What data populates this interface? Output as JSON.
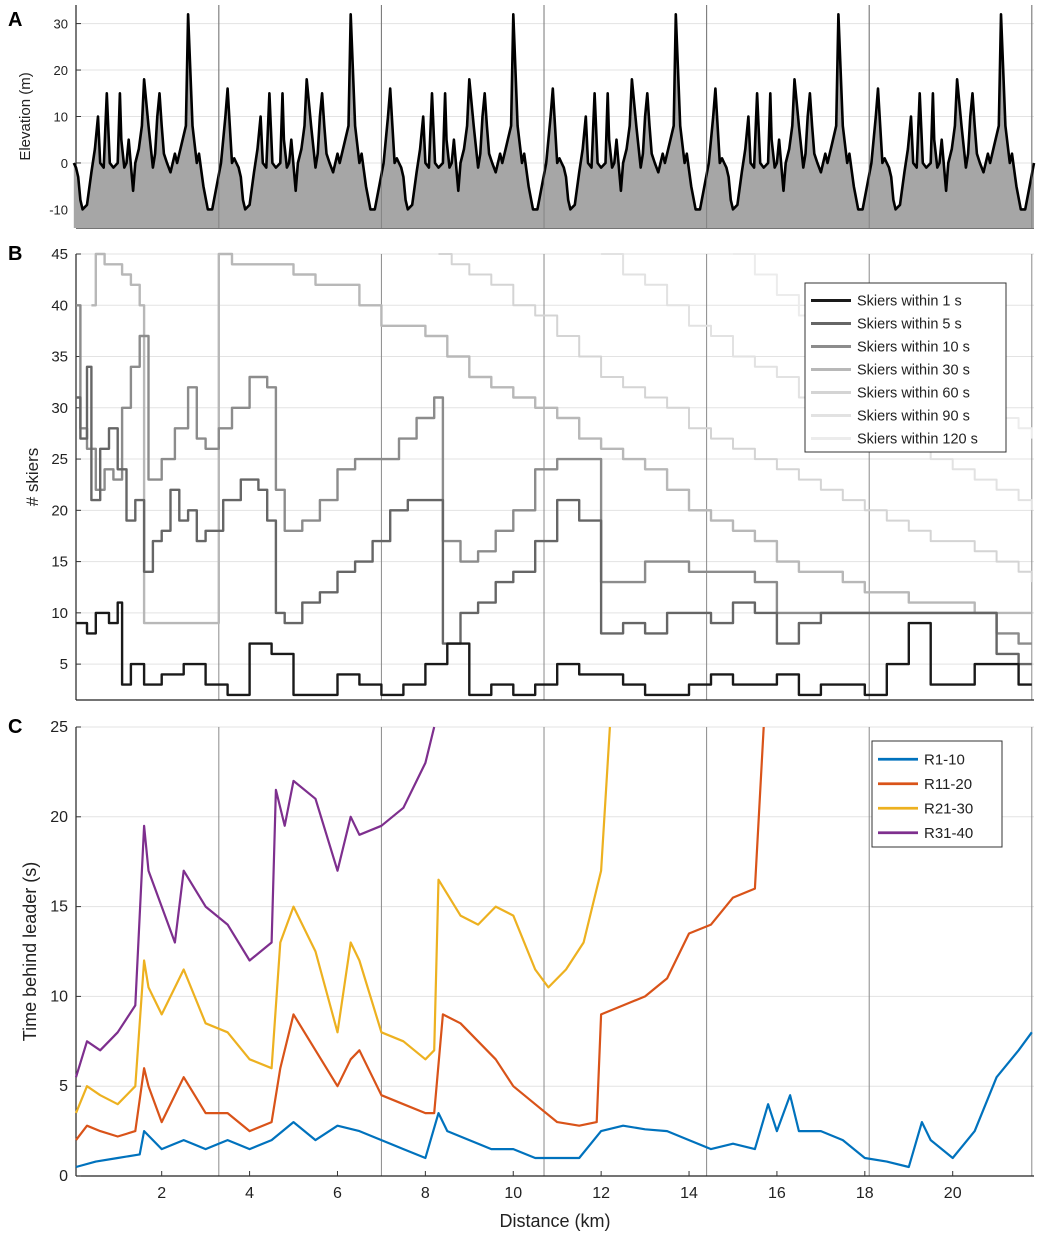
{
  "figure": {
    "shared_x": {
      "label": "Distance (km)",
      "range": [
        0.05,
        21.85
      ],
      "ticks": [
        2,
        4,
        6,
        8,
        10,
        12,
        14,
        16,
        18,
        20
      ],
      "lap_lines": [
        3.3,
        7.0,
        10.7,
        14.4,
        18.1,
        21.8
      ]
    }
  },
  "chart_data": [
    {
      "panel": "A",
      "type": "area",
      "ylabel": "Elevation (m)",
      "ylim": [
        -14,
        34
      ],
      "yticks": [
        -10,
        0,
        10,
        20,
        30
      ],
      "lap_length_km": 3.7,
      "lap_profile": {
        "distance_km": [
          0,
          0.05,
          0.1,
          0.15,
          0.2,
          0.3,
          0.4,
          0.48,
          0.55,
          0.6,
          0.68,
          0.75,
          0.82,
          0.9,
          1.0,
          1.05,
          1.08,
          1.15,
          1.2,
          1.25,
          1.35,
          1.4,
          1.48,
          1.55,
          1.6,
          1.7,
          1.8,
          1.85,
          1.9,
          1.95,
          2.0,
          2.05,
          2.12,
          2.2,
          2.3,
          2.35,
          2.45,
          2.55,
          2.6,
          2.7,
          2.8,
          2.85,
          2.95,
          3.05,
          3.15,
          3.25,
          3.35,
          3.4,
          3.45,
          3.5,
          3.55,
          3.6,
          3.65,
          3.7
        ],
        "elevation_m": [
          0,
          -1,
          -3,
          -8,
          -10,
          -9,
          -2,
          3,
          10,
          0,
          -1,
          15,
          0,
          -1,
          0,
          15,
          5,
          -1,
          0,
          5,
          -6,
          0,
          3,
          8,
          18,
          8,
          -1,
          2,
          10,
          15,
          8,
          2,
          0,
          -2,
          2,
          0,
          4,
          8,
          32,
          8,
          0,
          2,
          -5,
          -10,
          -10,
          -5,
          0,
          5,
          10,
          16,
          8,
          0,
          1,
          0
        ]
      },
      "series": [
        {
          "name": "Elevation",
          "color": "#000000",
          "fill": "#a6a6a6"
        }
      ]
    },
    {
      "panel": "B",
      "type": "line",
      "ylabel": "# skiers",
      "ylim": [
        1.5,
        45
      ],
      "yticks": [
        5,
        10,
        15,
        20,
        25,
        30,
        35,
        40,
        45
      ],
      "legend_position": "top-right",
      "series": [
        {
          "name": "Skiers within 1 s",
          "color": "#1a1a1a",
          "width": 2.4,
          "x": [
            0.05,
            0.3,
            0.5,
            0.8,
            1.0,
            1.1,
            1.3,
            1.6,
            2.0,
            2.5,
            3.0,
            3.5,
            4.0,
            4.5,
            5.0,
            5.5,
            6.0,
            6.5,
            7.0,
            7.5,
            8.0,
            8.5,
            9.0,
            9.5,
            10.0,
            10.5,
            11.0,
            11.5,
            12.0,
            12.5,
            13.0,
            13.5,
            14.0,
            14.5,
            15.0,
            15.5,
            16.0,
            16.5,
            17.0,
            17.5,
            18.0,
            18.5,
            19.0,
            19.5,
            20.0,
            20.5,
            21.0,
            21.5,
            21.8
          ],
          "y": [
            9,
            8,
            10,
            9,
            11,
            3,
            5,
            3,
            4,
            5,
            3,
            2,
            7,
            6,
            2,
            2,
            4,
            3,
            2,
            3,
            5,
            7,
            2,
            3,
            2,
            3,
            5,
            4,
            4,
            3,
            2,
            2,
            3,
            4,
            3,
            3,
            4,
            2,
            3,
            3,
            2,
            5,
            9,
            3,
            3,
            5,
            5,
            3,
            3
          ]
        },
        {
          "name": "Skiers within 5 s",
          "color": "#666666",
          "width": 2.4,
          "x": [
            0.05,
            0.15,
            0.3,
            0.4,
            0.6,
            0.8,
            1.0,
            1.2,
            1.4,
            1.6,
            1.8,
            2.0,
            2.2,
            2.4,
            2.6,
            2.8,
            3.0,
            3.4,
            3.8,
            4.2,
            4.4,
            4.6,
            4.8,
            5.2,
            5.6,
            6.0,
            6.4,
            6.8,
            7.2,
            7.6,
            8.0,
            8.4,
            8.8,
            9.2,
            9.6,
            10.0,
            10.5,
            11.0,
            11.5,
            12.0,
            12.5,
            13.0,
            13.5,
            14.0,
            14.5,
            15.0,
            15.5,
            16.0,
            16.5,
            17.0,
            17.5,
            18.0,
            18.5,
            19.0,
            19.5,
            20.0,
            20.5,
            21.0,
            21.5,
            21.8
          ],
          "y": [
            31,
            27,
            34,
            21,
            26,
            28,
            24,
            19,
            21,
            14,
            17,
            18,
            22,
            19,
            20,
            17,
            18,
            21,
            23,
            22,
            19,
            10,
            9,
            11,
            12,
            14,
            15,
            17,
            20,
            21,
            21,
            7,
            10,
            11,
            13,
            14,
            17,
            21,
            19,
            8,
            9,
            8,
            10,
            10,
            9,
            11,
            10,
            7,
            9,
            10,
            10,
            10,
            10,
            10,
            10,
            10,
            10,
            6,
            5,
            5
          ]
        },
        {
          "name": "Skiers within 10 s",
          "color": "#8c8c8c",
          "width": 2.4,
          "x": [
            0.05,
            0.15,
            0.3,
            0.5,
            0.7,
            0.9,
            1.1,
            1.3,
            1.5,
            1.7,
            2.0,
            2.3,
            2.6,
            2.8,
            3.0,
            3.3,
            3.6,
            4.0,
            4.4,
            4.6,
            4.8,
            5.2,
            5.6,
            6.0,
            6.4,
            7.0,
            7.4,
            7.8,
            8.2,
            8.4,
            8.8,
            9.2,
            9.6,
            10.0,
            10.5,
            11.0,
            11.5,
            12.0,
            12.5,
            13.0,
            14.0,
            15.0,
            15.5,
            16.0,
            17.0,
            18.0,
            19.0,
            20.0,
            20.5,
            21.0,
            21.5,
            21.8
          ],
          "y": [
            40,
            28,
            26,
            22,
            24,
            23,
            30,
            34,
            37,
            23,
            25,
            28,
            32,
            27,
            26,
            28,
            30,
            33,
            32,
            22,
            18,
            19,
            21,
            24,
            25,
            25,
            27,
            29,
            31,
            17,
            15,
            16,
            18,
            20,
            24,
            25,
            25,
            13,
            13,
            15,
            14,
            14,
            13,
            10,
            10,
            10,
            10,
            10,
            10,
            8,
            7,
            7
          ]
        },
        {
          "name": "Skiers within 30 s",
          "color": "#b8b8b8",
          "width": 2.4,
          "x": [
            0.4,
            0.5,
            0.7,
            0.9,
            1.1,
            1.3,
            1.5,
            1.6,
            3.3,
            3.6,
            4.0,
            4.5,
            5.0,
            5.5,
            6.0,
            6.5,
            7.0,
            7.5,
            8.0,
            8.5,
            9.0,
            9.5,
            10.0,
            10.5,
            11.0,
            11.5,
            12.0,
            12.5,
            13.0,
            13.5,
            14.0,
            14.5,
            15.0,
            15.5,
            16.0,
            16.5,
            17.0,
            17.5,
            18.0,
            18.5,
            19.0,
            19.5,
            20.0,
            20.5,
            21.0,
            21.5,
            21.8
          ],
          "y": [
            40,
            45,
            44,
            44,
            43,
            42,
            40,
            9,
            45,
            44,
            44,
            44,
            43,
            42,
            42,
            40,
            38,
            38,
            37,
            35,
            33,
            32,
            31,
            30,
            29,
            27,
            26,
            25,
            24,
            22,
            20,
            19,
            18,
            17,
            15,
            14,
            14,
            13,
            12,
            12,
            11,
            11,
            11,
            10,
            10,
            10,
            10
          ]
        },
        {
          "name": "Skiers within 60 s",
          "color": "#d4d4d4",
          "width": 2.0,
          "x": [
            8.3,
            8.6,
            9.0,
            9.5,
            10.0,
            10.5,
            11.0,
            11.5,
            12.0,
            12.5,
            13.0,
            13.5,
            14.0,
            14.5,
            15.0,
            15.5,
            16.0,
            16.5,
            17.0,
            17.5,
            18.0,
            18.5,
            19.0,
            19.5,
            20.0,
            20.5,
            21.0,
            21.5,
            21.8
          ],
          "y": [
            45,
            44,
            43,
            42,
            40,
            39,
            37,
            35,
            33,
            32,
            31,
            30,
            28,
            27,
            26,
            25,
            24,
            23,
            22,
            21,
            20,
            19,
            18,
            17,
            17,
            16,
            15,
            14,
            13
          ]
        },
        {
          "name": "Skiers within 90 s",
          "color": "#e2e2e2",
          "width": 2.0,
          "x": [
            12.0,
            12.5,
            13.0,
            13.5,
            14.0,
            14.5,
            15.0,
            15.5,
            16.0,
            16.5,
            17.0,
            17.5,
            18.0,
            18.5,
            19.0,
            19.5,
            20.0,
            20.5,
            21.0,
            21.5,
            21.8
          ],
          "y": [
            45,
            43,
            42,
            40,
            38,
            37,
            35,
            34,
            33,
            31,
            30,
            29,
            28,
            27,
            26,
            25,
            24,
            23,
            22,
            21,
            20
          ]
        },
        {
          "name": "Skiers within 120 s",
          "color": "#ececec",
          "width": 2.0,
          "x": [
            15.0,
            15.5,
            16.0,
            16.5,
            17.0,
            17.5,
            18.0,
            18.5,
            19.0,
            19.5,
            20.0,
            20.5,
            21.0,
            21.5,
            21.8
          ],
          "y": [
            45,
            43,
            41,
            39,
            38,
            36,
            35,
            34,
            33,
            32,
            31,
            30,
            29,
            28,
            27
          ]
        }
      ]
    },
    {
      "panel": "C",
      "type": "line",
      "ylabel": "Time behind leader (s)",
      "xlabel": "Distance (km)",
      "ylim": [
        0,
        25
      ],
      "yticks": [
        0,
        5,
        10,
        15,
        20,
        25
      ],
      "legend_position": "top-right",
      "series": [
        {
          "name": "R1-10",
          "color": "#0072bd",
          "width": 2.2,
          "x": [
            0.05,
            0.5,
            1.0,
            1.5,
            1.6,
            2.0,
            2.5,
            3.0,
            3.5,
            4.0,
            4.5,
            5.0,
            5.5,
            6.0,
            6.5,
            7.0,
            7.5,
            8.0,
            8.3,
            8.5,
            9.0,
            9.5,
            10.0,
            10.5,
            11.0,
            11.5,
            12.0,
            12.5,
            13.0,
            13.5,
            14.0,
            14.5,
            15.0,
            15.5,
            15.8,
            16.0,
            16.3,
            16.5,
            17.0,
            17.5,
            18.0,
            18.5,
            19.0,
            19.3,
            19.5,
            20.0,
            20.5,
            21.0,
            21.5,
            21.8
          ],
          "y": [
            0.5,
            0.8,
            1.0,
            1.2,
            2.5,
            1.5,
            2.0,
            1.5,
            2.0,
            1.5,
            2.0,
            3.0,
            2.0,
            2.8,
            2.5,
            2.0,
            1.5,
            1.0,
            3.5,
            2.5,
            2.0,
            1.5,
            1.5,
            1.0,
            1.0,
            1.0,
            2.5,
            2.8,
            2.6,
            2.5,
            2.0,
            1.5,
            1.8,
            1.5,
            4.0,
            2.5,
            4.5,
            2.5,
            2.5,
            2.0,
            1.0,
            0.8,
            0.5,
            3.0,
            2.0,
            1.0,
            2.5,
            5.5,
            7.0,
            8.0
          ]
        },
        {
          "name": "R11-20",
          "color": "#d95319",
          "width": 2.2,
          "x": [
            0.05,
            0.3,
            0.6,
            1.0,
            1.4,
            1.6,
            1.7,
            2.0,
            2.5,
            3.0,
            3.5,
            4.0,
            4.5,
            4.7,
            5.0,
            5.5,
            6.0,
            6.3,
            6.5,
            7.0,
            7.5,
            8.0,
            8.2,
            8.4,
            8.8,
            9.2,
            9.6,
            10.0,
            10.5,
            11.0,
            11.5,
            11.9,
            12.0,
            12.5,
            13.0,
            13.5,
            14.0,
            14.5,
            15.0,
            15.5,
            15.7
          ],
          "y": [
            2.0,
            2.8,
            2.5,
            2.2,
            2.5,
            6.0,
            5.0,
            3.0,
            5.5,
            3.5,
            3.5,
            2.5,
            3.0,
            6.0,
            9.0,
            7.0,
            5.0,
            6.5,
            7.0,
            4.5,
            4.0,
            3.5,
            3.5,
            9.0,
            8.5,
            7.5,
            6.5,
            5.0,
            4.0,
            3.0,
            2.8,
            3.0,
            9.0,
            9.5,
            10.0,
            11.0,
            13.5,
            14.0,
            15.5,
            16.0,
            25
          ]
        },
        {
          "name": "R21-30",
          "color": "#edb120",
          "width": 2.2,
          "x": [
            0.05,
            0.3,
            0.6,
            1.0,
            1.4,
            1.6,
            1.7,
            2.0,
            2.5,
            3.0,
            3.5,
            4.0,
            4.5,
            4.7,
            5.0,
            5.5,
            6.0,
            6.3,
            6.5,
            7.0,
            7.5,
            8.0,
            8.2,
            8.3,
            8.8,
            9.2,
            9.6,
            10.0,
            10.5,
            10.8,
            11.2,
            11.6,
            12.0,
            12.2
          ],
          "y": [
            3.5,
            5.0,
            4.5,
            4.0,
            5.0,
            12.0,
            10.5,
            9.0,
            11.5,
            8.5,
            8.0,
            6.5,
            6.0,
            13.0,
            15.0,
            12.5,
            8.0,
            13.0,
            12.0,
            8.0,
            7.5,
            6.5,
            7.0,
            16.5,
            14.5,
            14.0,
            15.0,
            14.5,
            11.5,
            10.5,
            11.5,
            13.0,
            17.0,
            25
          ]
        },
        {
          "name": "R31-40",
          "color": "#7e2f8e",
          "width": 2.2,
          "x": [
            0.05,
            0.3,
            0.6,
            1.0,
            1.4,
            1.6,
            1.7,
            2.0,
            2.3,
            2.5,
            3.0,
            3.5,
            4.0,
            4.5,
            4.6,
            4.8,
            5.0,
            5.5,
            6.0,
            6.3,
            6.5,
            7.0,
            7.5,
            7.8,
            8.0,
            8.2
          ],
          "y": [
            5.5,
            7.5,
            7.0,
            8.0,
            9.5,
            19.5,
            17.0,
            15.0,
            13.0,
            17.0,
            15.0,
            14.0,
            12.0,
            13.0,
            21.5,
            19.5,
            22.0,
            21.0,
            17.0,
            20.0,
            19.0,
            19.5,
            20.5,
            22.0,
            23.0,
            25
          ]
        }
      ]
    }
  ]
}
